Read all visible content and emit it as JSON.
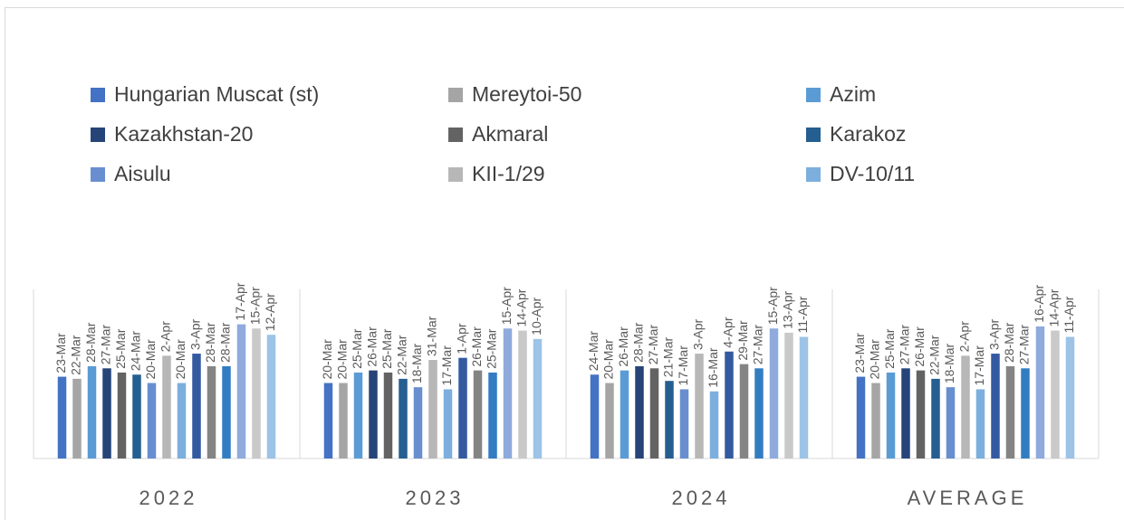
{
  "chart_data": {
    "type": "bar",
    "categories": [
      "2022",
      "2023",
      "2024",
      "AVERAGE"
    ],
    "ylim": [
      43,
      112
    ],
    "series": [
      {
        "name": "Hungarian Muscat (st)",
        "color": "#4472c4",
        "values": [
          82,
          79,
          83,
          82
        ],
        "value_labels": [
          "23-Mar",
          "20-Mar",
          "24-Mar",
          "23-Mar"
        ]
      },
      {
        "name": "Mereytoi-50",
        "color": "#a5a5a5",
        "values": [
          81,
          79,
          79,
          79
        ],
        "value_labels": [
          "22-Mar",
          "20-Mar",
          "20-Mar",
          "20-Mar"
        ]
      },
      {
        "name": "Azim",
        "color": "#5b9bd5",
        "values": [
          87,
          84,
          85,
          84
        ],
        "value_labels": [
          "28-Mar",
          "25-Mar",
          "26-Mar",
          "25-Mar"
        ]
      },
      {
        "name": "Kazakhstan-20",
        "color": "#264478",
        "values": [
          86,
          85,
          87,
          86
        ],
        "value_labels": [
          "27-Mar",
          "26-Mar",
          "28-Mar",
          "27-Mar"
        ]
      },
      {
        "name": "Akmaral",
        "color": "#636363",
        "values": [
          84,
          84,
          86,
          85
        ],
        "value_labels": [
          "25-Mar",
          "25-Mar",
          "27-Mar",
          "26-Mar"
        ]
      },
      {
        "name": "Karakoz",
        "color": "#255e91",
        "values": [
          83,
          81,
          80,
          81
        ],
        "value_labels": [
          "24-Mar",
          "22-Mar",
          "21-Mar",
          "22-Mar"
        ]
      },
      {
        "name": "Aisulu",
        "color": "#698ed0",
        "values": [
          79,
          77,
          76,
          77
        ],
        "value_labels": [
          "20-Mar",
          "18-Mar",
          "17-Mar",
          "18-Mar"
        ]
      },
      {
        "name": "KII-1/29",
        "color": "#b7b7b7",
        "values": [
          92,
          90,
          93,
          92
        ],
        "value_labels": [
          "2-Apr",
          "31-Mar",
          "3-Apr",
          "2-Apr"
        ]
      },
      {
        "name": "DV-10/11",
        "color": "#7cafdd",
        "values": [
          79,
          76,
          75,
          76
        ],
        "value_labels": [
          "20-Mar",
          "17-Mar",
          "16-Mar",
          "17-Mar"
        ]
      },
      {
        "color": "#335aa1",
        "values": [
          93,
          91,
          94,
          93
        ],
        "value_labels": [
          "3-Apr",
          "1-Apr",
          "4-Apr",
          "3-Apr"
        ]
      },
      {
        "color": "#848484",
        "values": [
          87,
          85,
          88,
          87
        ],
        "value_labels": [
          "28-Mar",
          "26-Mar",
          "29-Mar",
          "28-Mar"
        ]
      },
      {
        "color": "#327dc2",
        "values": [
          87,
          84,
          86,
          86
        ],
        "value_labels": [
          "28-Mar",
          "25-Mar",
          "27-Mar",
          "27-Mar"
        ]
      },
      {
        "color": "#8faadc",
        "values": [
          107,
          105,
          105,
          106
        ],
        "value_labels": [
          "17-Apr",
          "15-Apr",
          "15-Apr",
          "16-Apr"
        ]
      },
      {
        "color": "#c9c9c9",
        "values": [
          105,
          104,
          103,
          104
        ],
        "value_labels": [
          "15-Apr",
          "14-Apr",
          "13-Apr",
          "14-Apr"
        ]
      },
      {
        "color": "#9dc3e6",
        "values": [
          102,
          100,
          101,
          101
        ],
        "value_labels": [
          "12-Apr",
          "10-Apr",
          "11-Apr",
          "11-Apr"
        ]
      }
    ]
  }
}
